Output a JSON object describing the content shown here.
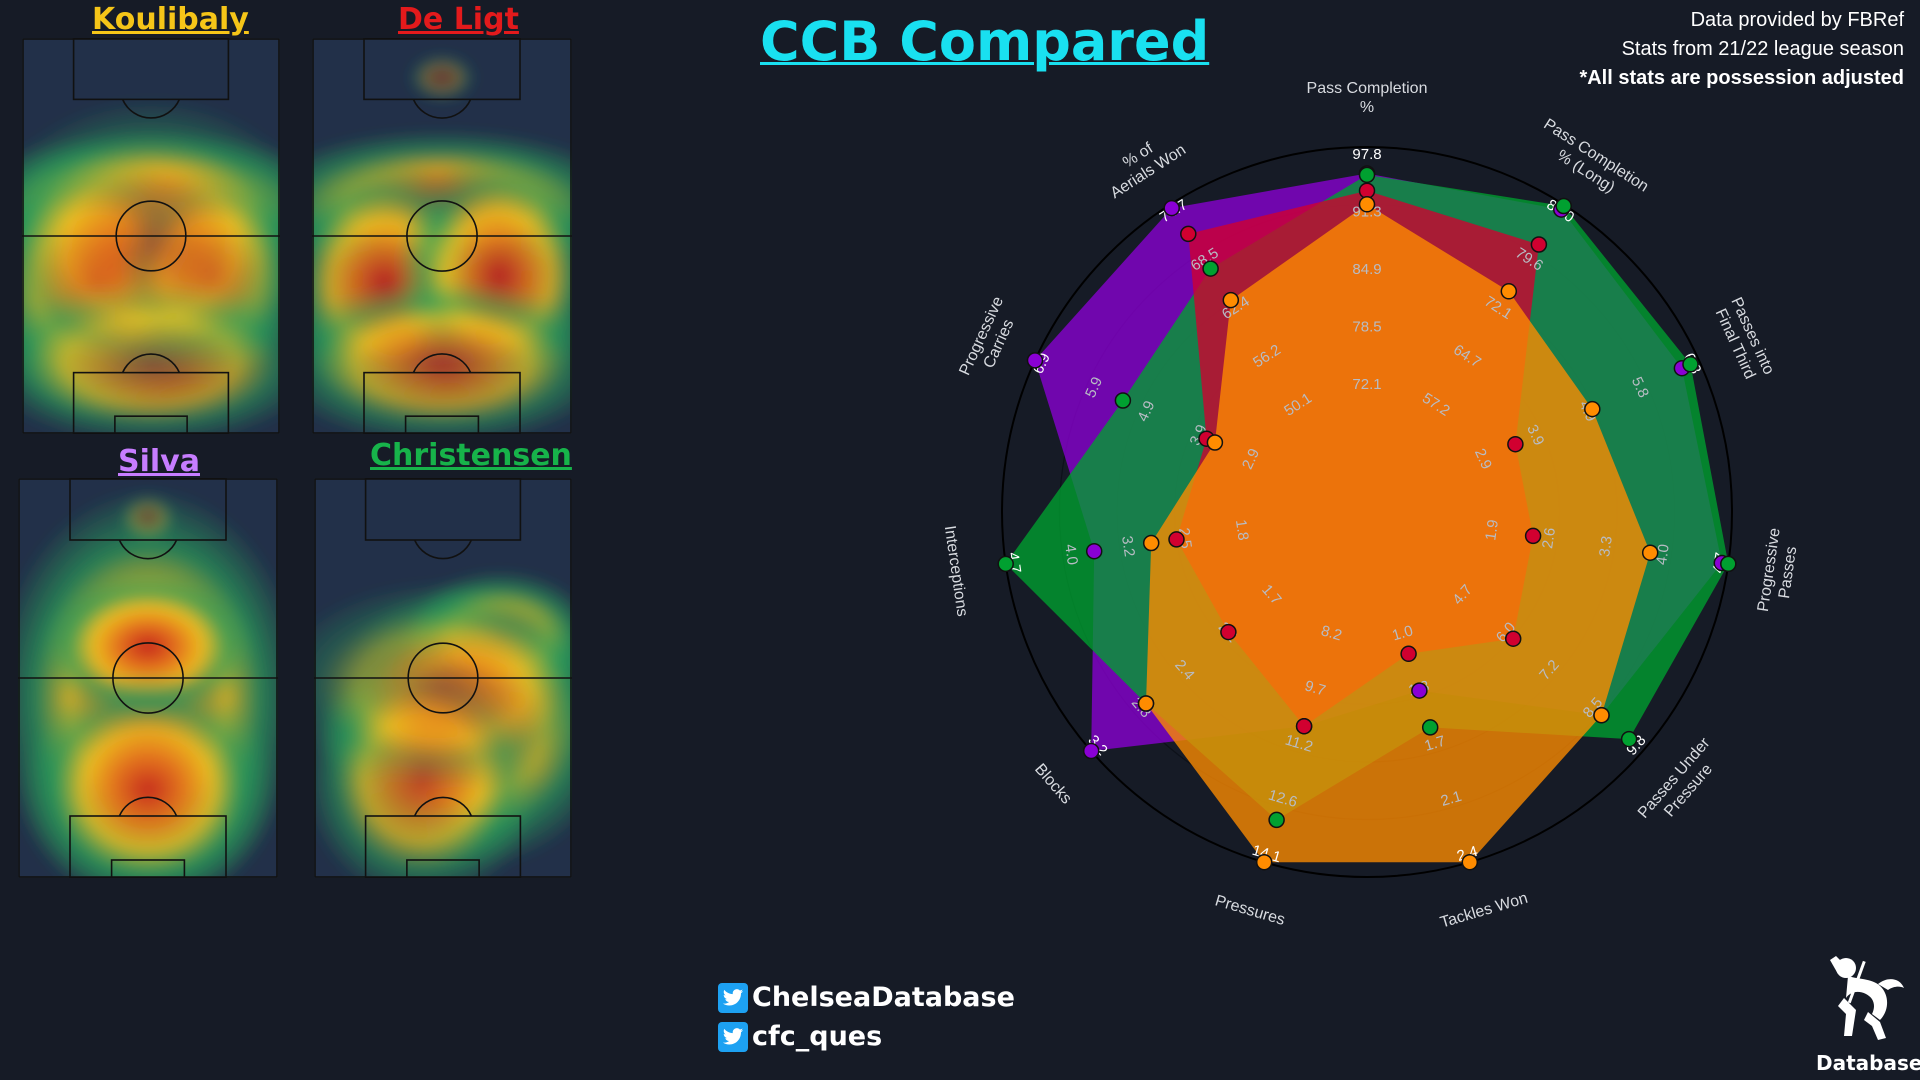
{
  "header": {
    "title": "CCB Compared",
    "source_lines": [
      "Data provided by FBRef",
      "Stats from 21/22 league season",
      "*All stats are possession adjusted"
    ]
  },
  "players": [
    {
      "name": "Koulibaly",
      "color": "#f5c518"
    },
    {
      "name": "De Ligt",
      "color": "#e31a1c"
    },
    {
      "name": "Silva",
      "color": "#c77dff"
    },
    {
      "name": "Christensen",
      "color": "#17b34a"
    }
  ],
  "social": {
    "handle_1": "ChelseaDatabase",
    "handle_2": "cfc_ques",
    "icon": "twitter-bird-icon"
  },
  "logo": {
    "text": "Database",
    "icon": "chelsea-lion-icon"
  },
  "chart_data": [
    {
      "type": "heatmap",
      "panels": [
        "Koulibaly",
        "De Ligt",
        "Silva",
        "Christensen"
      ],
      "colorscale": [
        "#223049",
        "#2aa05a",
        "#f0c020",
        "#e58a1a",
        "#c41f1f"
      ]
    },
    {
      "type": "radar",
      "title": "CCB Compared",
      "axes": [
        {
          "label": "Pass Completion %",
          "ticks": [
            "72.1",
            "78.5",
            "84.9",
            "91.3",
            "97.8"
          ],
          "min": 65.7,
          "max": 97.8
        },
        {
          "label": "Pass Completion % (Long)",
          "ticks": [
            "57.2",
            "64.7",
            "72.1",
            "79.6",
            "87.0"
          ],
          "min": 49.8,
          "max": 87.0
        },
        {
          "label": "Passes into Final Third",
          "ticks": [
            "2.9",
            "3.9",
            "4.9",
            "5.8",
            "6.8"
          ],
          "min": 1.9,
          "max": 6.8
        },
        {
          "label": "Progressive Passes",
          "ticks": [
            "1.9",
            "2.6",
            "3.3",
            "4.0",
            "4.7"
          ],
          "min": 1.2,
          "max": 4.7
        },
        {
          "label": "Passes Under Pressure",
          "ticks": [
            "4.7",
            "6.0",
            "7.2",
            "8.5",
            "9.8"
          ],
          "min": 3.5,
          "max": 9.8
        },
        {
          "label": "Tackles Won",
          "ticks": [
            "1.0",
            "1.3",
            "1.7",
            "2.1",
            "2.4"
          ],
          "min": 0.6,
          "max": 2.4
        },
        {
          "label": "Pressures",
          "ticks": [
            "8.2",
            "9.7",
            "11.2",
            "12.6",
            "14.1"
          ],
          "min": 6.8,
          "max": 14.1
        },
        {
          "label": "Blocks",
          "ticks": [
            "1.7",
            "2.1",
            "2.4",
            "2.8",
            "3.2"
          ],
          "min": 1.3,
          "max": 3.2
        },
        {
          "label": "Interceptions",
          "ticks": [
            "1.8",
            "2.5",
            "3.2",
            "4.0",
            "4.7"
          ],
          "min": 1.1,
          "max": 4.7
        },
        {
          "label": "Progressive Carries",
          "ticks": [
            "2.9",
            "3.9",
            "4.9",
            "5.9",
            "6.9"
          ],
          "min": 1.9,
          "max": 6.9
        },
        {
          "label": "% of Aerials Won",
          "ticks": [
            "50.1",
            "56.2",
            "62.4",
            "68.5",
            "74.7"
          ],
          "min": 44.0,
          "max": 74.7
        }
      ],
      "series": [
        {
          "name": "Silva",
          "color": "#8a00d4",
          "values": [
            94.1,
            86.1,
            6.4,
            4.6,
            8.3,
            1.0,
            9.6,
            3.2,
            3.3,
            6.9,
            74.2
          ]
        },
        {
          "name": "Christensen",
          "color": "#00a030",
          "values": [
            93.9,
            86.8,
            6.6,
            4.7,
            9.3,
            1.3,
            12.7,
            2.6,
            4.7,
            4.8,
            64.6
          ]
        },
        {
          "name": "De Ligt",
          "color": "#d10030",
          "values": [
            91.7,
            79.4,
            2.5,
            1.7,
            5.1,
            0.7,
            9.6,
            1.7,
            2.0,
            2.8,
            70.1
          ]
        },
        {
          "name": "Koulibaly",
          "color": "#ff8c00",
          "values": [
            89.8,
            70.4,
            4.3,
            3.5,
            8.3,
            2.4,
            14.1,
            2.6,
            2.4,
            2.6,
            59.6
          ]
        }
      ],
      "grid": true,
      "legend": "none"
    }
  ]
}
